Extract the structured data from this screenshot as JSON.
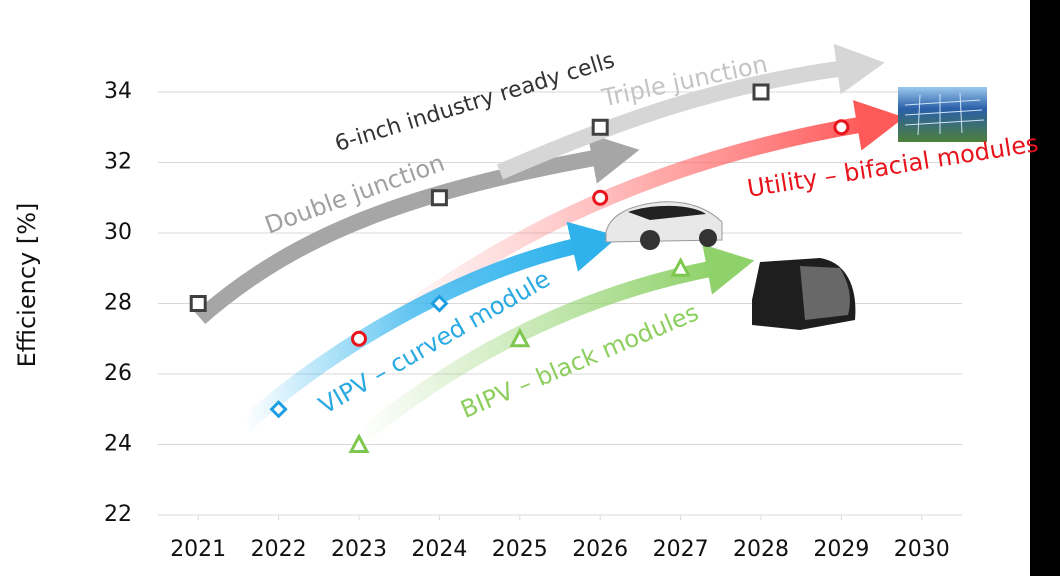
{
  "chart_data": {
    "type": "scatter",
    "y_label": "Efficiency [%]",
    "xlim": [
      2020.5,
      2030.5
    ],
    "xticks": [
      2021,
      2022,
      2023,
      2024,
      2025,
      2026,
      2027,
      2028,
      2029,
      2030
    ],
    "ylim": [
      22,
      34
    ],
    "yticks": [
      22,
      24,
      26,
      28,
      30,
      32,
      34
    ],
    "grid": true,
    "series": [
      {
        "color": "#404040",
        "marker": "square",
        "x": [
          2021,
          2024,
          2026,
          2028
        ],
        "values": [
          28,
          31,
          33,
          34
        ]
      },
      {
        "color": "#e8141c",
        "marker": "circle",
        "x": [
          2023,
          2026,
          2029
        ],
        "values": [
          27,
          31,
          33
        ]
      },
      {
        "color": "#1c9ee0",
        "marker": "diamond",
        "x": [
          2022,
          2024
        ],
        "values": [
          25,
          28
        ]
      },
      {
        "color": "#7ec850",
        "marker": "triangle",
        "x": [
          2023,
          2025,
          2027
        ],
        "values": [
          24,
          27,
          29
        ]
      }
    ],
    "annotations": [
      "6-inch industry ready cells",
      "Triple junction",
      "Double junction",
      "Utility – bifacial modules",
      "VIPV – curved module",
      "BIPV – black modules"
    ]
  }
}
